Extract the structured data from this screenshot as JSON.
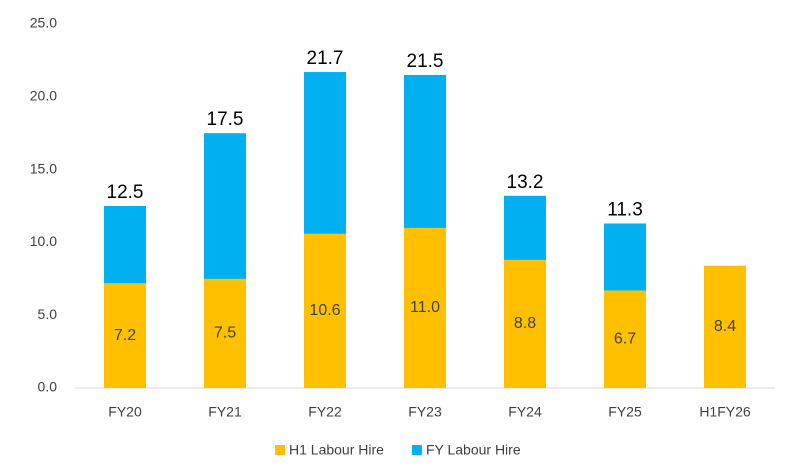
{
  "chart_data": {
    "type": "bar",
    "categories": [
      "FY20",
      "FY21",
      "FY22",
      "FY23",
      "FY24",
      "FY25",
      "H1FY26"
    ],
    "series": [
      {
        "name": "FY Labour Hire",
        "color": "#00B0F0",
        "values": [
          12.5,
          17.5,
          21.7,
          21.5,
          13.2,
          11.3,
          null
        ]
      },
      {
        "name": "H1 Labour Hire",
        "color": "#FFC000",
        "values": [
          7.2,
          7.5,
          10.6,
          11.0,
          8.8,
          6.7,
          8.4
        ],
        "value_labels": [
          "7.2",
          "7.5",
          "10.6",
          "11.0",
          "8.8",
          "6.7",
          "8.4"
        ]
      }
    ],
    "legend_order": [
      1,
      0
    ],
    "ylim": [
      0,
      25
    ],
    "yticks": [
      {
        "value": 0,
        "label": "0.0"
      },
      {
        "value": 5,
        "label": "5.0"
      },
      {
        "value": 10,
        "label": "10.0"
      },
      {
        "value": 15,
        "label": "15.0"
      },
      {
        "value": 20,
        "label": "20.0"
      },
      {
        "value": 25,
        "label": "25.0"
      }
    ],
    "grid": false
  }
}
